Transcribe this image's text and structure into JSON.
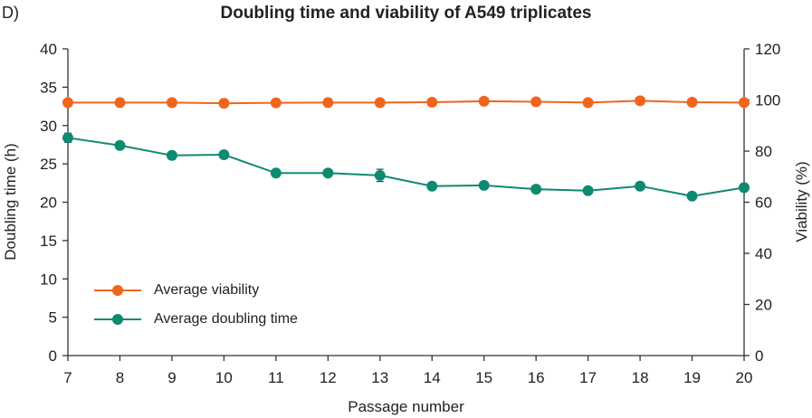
{
  "panel_label": "D)",
  "chart_data": {
    "type": "line",
    "title": "Doubling time and viability of A549 triplicates",
    "xlabel": "Passage number",
    "ylabel_left": "Doubling time (h)",
    "ylabel_right": "Viability (%)",
    "x": [
      7,
      8,
      9,
      10,
      11,
      12,
      13,
      14,
      15,
      16,
      17,
      18,
      19,
      20
    ],
    "xlim": [
      7,
      20
    ],
    "ylim_left": [
      0,
      40
    ],
    "ylim_right": [
      0,
      120
    ],
    "yticks_left": [
      0,
      5,
      10,
      15,
      20,
      25,
      30,
      35,
      40
    ],
    "yticks_right": [
      0,
      20,
      40,
      60,
      80,
      100,
      120
    ],
    "legend_position": "lower-left",
    "grid": false,
    "series": [
      {
        "name": "Average viability",
        "axis": "right",
        "color": "#F0651E",
        "values": [
          99,
          99,
          99,
          98.7,
          98.9,
          99,
          99,
          99.1,
          99.5,
          99.3,
          99,
          99.7,
          99.1,
          99
        ]
      },
      {
        "name": "Average doubling time",
        "axis": "left",
        "color": "#0F8A72",
        "values": [
          28.4,
          27.4,
          26.1,
          26.2,
          23.8,
          23.8,
          23.5,
          22.1,
          22.2,
          21.7,
          21.5,
          22.1,
          20.8,
          21.9
        ],
        "errors": [
          0.6,
          0.5,
          0.5,
          0,
          0.4,
          0.2,
          0.8,
          0.2,
          0.2,
          0.4,
          0.2,
          0.5,
          0,
          0
        ]
      }
    ]
  }
}
